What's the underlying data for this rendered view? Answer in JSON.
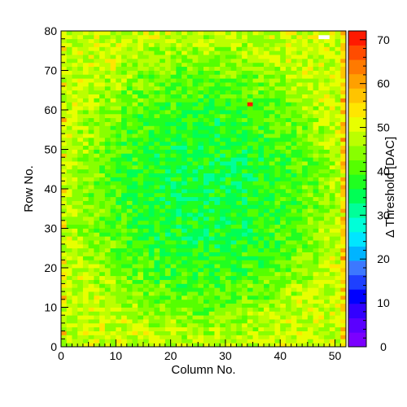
{
  "chart_data": {
    "type": "heatmap",
    "title": "",
    "xlabel": "Column No.",
    "ylabel": "Row No.",
    "zlabel": "Δ Threshold [DAC]",
    "xlim": [
      0,
      52
    ],
    "ylim": [
      0,
      80
    ],
    "zlim": [
      0,
      72
    ],
    "x_ticks": [
      "0",
      "10",
      "20",
      "30",
      "40",
      "50"
    ],
    "y_ticks": [
      "0",
      "10",
      "20",
      "30",
      "40",
      "50",
      "60",
      "70",
      "80"
    ],
    "z_ticks": [
      "0",
      "10",
      "20",
      "30",
      "40",
      "50",
      "60",
      "70"
    ],
    "n_columns": 52,
    "n_rows": 80,
    "grid": false,
    "legend": "color bar at right",
    "palette": [
      "#7b00ff",
      "#5a00ff",
      "#3300ff",
      "#0000ff",
      "#1e40ff",
      "#3c78ff",
      "#00b4ff",
      "#00e6ff",
      "#00ffd8",
      "#00ff99",
      "#00ff55",
      "#20ff20",
      "#55ff00",
      "#88ff00",
      "#bbff00",
      "#e8ff00",
      "#ffe600",
      "#ffc400",
      "#ffa000",
      "#ff7a00",
      "#ff4c00",
      "#ff1a00"
    ],
    "value_summary": {
      "center_typical": 35,
      "edge_typical": 48,
      "overall_typical": 43,
      "column_52_edge_pixels": [
        61,
        57,
        65,
        55,
        62,
        58,
        60,
        56,
        59,
        63
      ],
      "outliers": [
        {
          "column": 34,
          "row": 61,
          "value": 72
        },
        {
          "column": 47,
          "row": 78,
          "value": 0
        },
        {
          "column": 48,
          "row": 78,
          "value": 0
        }
      ]
    }
  }
}
